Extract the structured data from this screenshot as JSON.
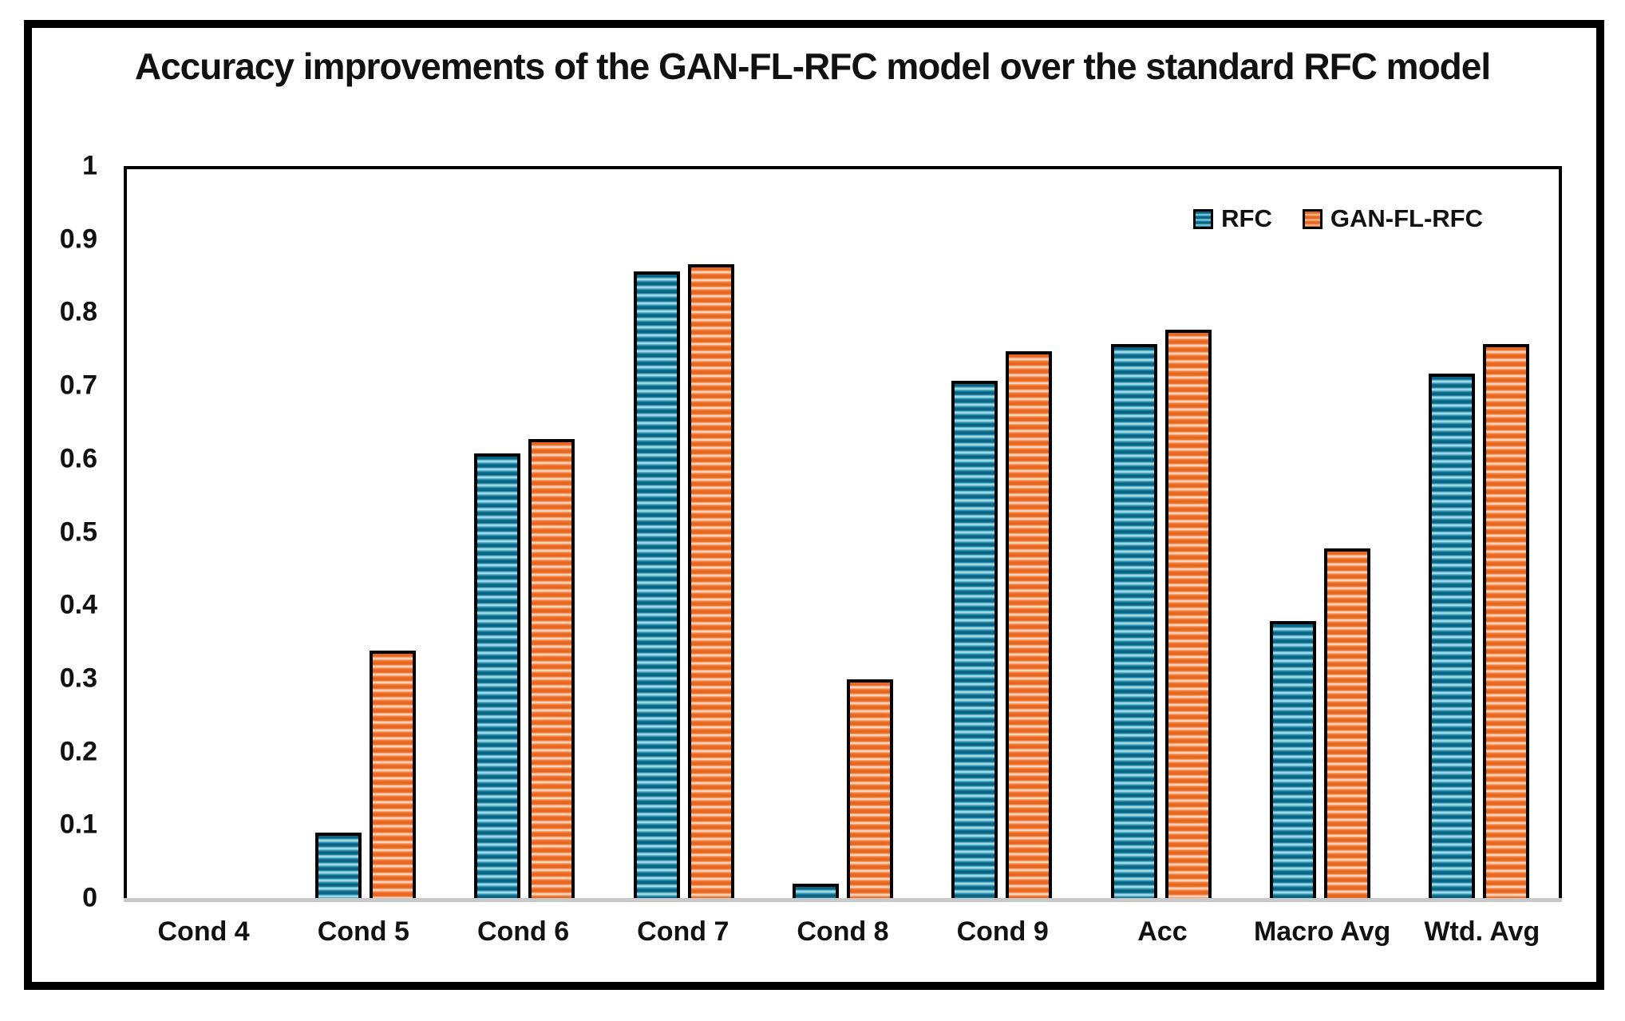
{
  "figure": {
    "background": "#ffffff",
    "frame_color": "#000000",
    "axis_line_color": "#c9c9c9"
  },
  "chart_data": {
    "type": "bar",
    "title": "Accuracy improvements of the GAN-FL-RFC model over the standard RFC model",
    "categories": [
      "Cond 4",
      "Cond 5",
      "Cond 6",
      "Cond 7",
      "Cond 8",
      "Cond 9",
      "Acc",
      "Macro Avg",
      "Wtd. Avg"
    ],
    "series": [
      {
        "name": "RFC",
        "values": [
          0,
          0.09,
          0.61,
          0.86,
          0.02,
          0.71,
          0.76,
          0.38,
          0.72
        ],
        "color_dark": "#0a6584",
        "color_mid": "#3fa3c0",
        "color_light": "#a8dcea"
      },
      {
        "name": "GAN-FL-RFC",
        "values": [
          0,
          0.34,
          0.63,
          0.87,
          0.3,
          0.75,
          0.78,
          0.48,
          0.76
        ],
        "color_dark": "#e9661f",
        "color_mid": "#f68a4c",
        "color_light": "#fcd9c4"
      }
    ],
    "xlabel": "",
    "ylabel": "",
    "ylim": [
      0,
      1
    ],
    "yticks": [
      0,
      0.1,
      0.2,
      0.3,
      0.4,
      0.5,
      0.6,
      0.7,
      0.8,
      0.9,
      1
    ],
    "ytick_labels": [
      "0",
      "0.1",
      "0.2",
      "0.3",
      "0.4",
      "0.5",
      "0.6",
      "0.7",
      "0.8",
      "0.9",
      "1"
    ],
    "grid": false,
    "legend_position": "top-right",
    "bar_pattern": "horizontal-stripes",
    "bar_border_color": "#000000"
  }
}
